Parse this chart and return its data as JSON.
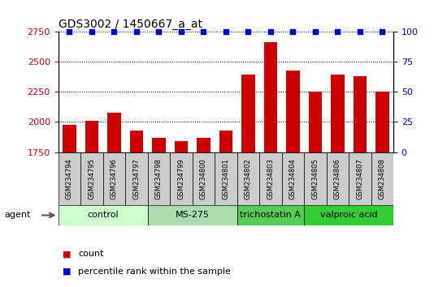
{
  "title": "GDS3002 / 1450667_a_at",
  "samples": [
    "GSM234794",
    "GSM234795",
    "GSM234796",
    "GSM234797",
    "GSM234798",
    "GSM234799",
    "GSM234800",
    "GSM234801",
    "GSM234802",
    "GSM234803",
    "GSM234804",
    "GSM234805",
    "GSM234806",
    "GSM234807",
    "GSM234808"
  ],
  "counts": [
    1975,
    2010,
    2075,
    1930,
    1870,
    1840,
    1870,
    1930,
    2390,
    2665,
    2430,
    2255,
    2390,
    2380,
    2250
  ],
  "percentile_ranks": [
    100,
    100,
    100,
    100,
    100,
    100,
    100,
    100,
    100,
    100,
    100,
    100,
    100,
    100,
    100
  ],
  "ylim_left": [
    1750,
    2750
  ],
  "ylim_right": [
    0,
    100
  ],
  "yticks_left": [
    1750,
    2000,
    2250,
    2500,
    2750
  ],
  "yticks_right": [
    0,
    25,
    50,
    75,
    100
  ],
  "bar_color": "#cc0000",
  "dot_color": "#0000cc",
  "bar_width": 0.6,
  "group_info": [
    {
      "label": "control",
      "start": 0,
      "end": 4,
      "color": "#ccffcc"
    },
    {
      "label": "MS-275",
      "start": 4,
      "end": 8,
      "color": "#aaddaa"
    },
    {
      "label": "trichostatin A",
      "start": 8,
      "end": 11,
      "color": "#55cc55"
    },
    {
      "label": "valproic acid",
      "start": 11,
      "end": 15,
      "color": "#33cc33"
    }
  ],
  "legend_count_color": "#cc0000",
  "legend_dot_color": "#0000cc",
  "background_color": "#ffffff",
  "sample_label_bg": "#cccccc",
  "tick_label_color_left": "#cc0000",
  "tick_label_color_right": "#0000cc"
}
